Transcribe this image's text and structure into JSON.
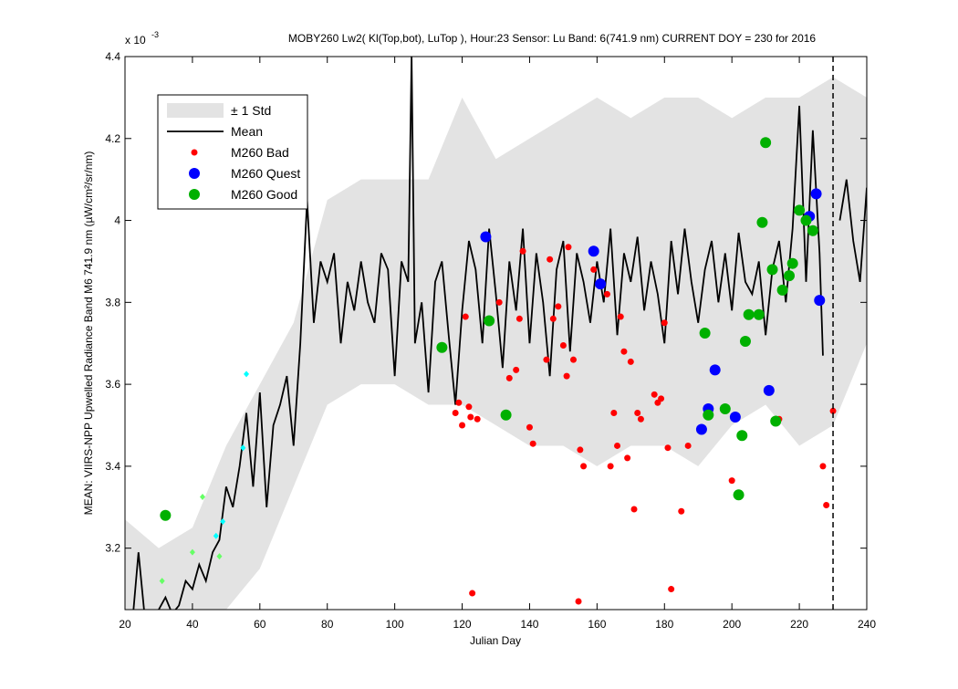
{
  "chart_data": {
    "type": "line",
    "title": "MOBY260   Lw2( Kl(Top,bot), LuTop ),   Hour:23 Sensor: Lu Band: 6(741.9 nm)   CURRENT DOY = 230 for 2016",
    "multiplier_base": "x 10",
    "multiplier_exp": "-3",
    "xlabel": "Julian Day",
    "ylabel": "MEAN: VIIRS-NPP Upwelled Radiance Band M6 741.9 nm (µW/cm²/sr/nm)",
    "xlim": [
      20,
      240
    ],
    "ylim": [
      3.05,
      4.4
    ],
    "xticks": [
      20,
      40,
      60,
      80,
      100,
      120,
      140,
      160,
      180,
      200,
      220,
      240
    ],
    "yticks": [
      3.2,
      3.4,
      3.6,
      3.8,
      4,
      4.2,
      4.4
    ],
    "vline": 230,
    "legend": "upper left",
    "series": [
      {
        "name": "± 1 Std",
        "style": "band",
        "color": "#e3e3e3",
        "x": [
          20,
          30,
          40,
          50,
          60,
          70,
          80,
          90,
          100,
          110,
          120,
          130,
          140,
          150,
          160,
          170,
          180,
          190,
          200,
          210,
          220,
          230,
          240
        ],
        "upper": [
          3.27,
          3.2,
          3.25,
          3.45,
          3.6,
          3.75,
          4.05,
          4.1,
          4.1,
          4.1,
          4.3,
          4.15,
          4.2,
          4.25,
          4.3,
          4.25,
          4.3,
          4.3,
          4.25,
          4.3,
          4.3,
          4.35,
          4.3
        ],
        "lower": [
          3.05,
          3.05,
          3.05,
          3.05,
          3.15,
          3.35,
          3.55,
          3.6,
          3.6,
          3.55,
          3.55,
          3.5,
          3.45,
          3.45,
          3.4,
          3.45,
          3.45,
          3.4,
          3.5,
          3.55,
          3.45,
          3.5,
          3.7
        ]
      },
      {
        "name": "Mean",
        "style": "line",
        "color": "#000000",
        "x": [
          22,
          24,
          26,
          28,
          30,
          32,
          34,
          36,
          38,
          40,
          42,
          44,
          46,
          48,
          50,
          52,
          54,
          56,
          58,
          60,
          62,
          64,
          66,
          68,
          70,
          72,
          74,
          76,
          78,
          80,
          82,
          84,
          86,
          88,
          90,
          92,
          94,
          96,
          98,
          100,
          102,
          104,
          105,
          106,
          108,
          110,
          112,
          114,
          116,
          118,
          120,
          122,
          124,
          126,
          128,
          130,
          132,
          134,
          136,
          138,
          140,
          142,
          144,
          146,
          148,
          150,
          152,
          154,
          156,
          158,
          160,
          162,
          164,
          166,
          168,
          170,
          172,
          174,
          176,
          178,
          180,
          182,
          184,
          186,
          188,
          190,
          192,
          194,
          196,
          198,
          200,
          202,
          204,
          206,
          208,
          210,
          212,
          214,
          216,
          218,
          220,
          222,
          224,
          226,
          227,
          230,
          232,
          234,
          236,
          238,
          240
        ],
        "values": [
          3.0,
          3.19,
          3.02,
          null,
          3.05,
          3.08,
          3.04,
          3.06,
          3.12,
          3.1,
          3.16,
          3.12,
          3.19,
          3.22,
          3.35,
          3.3,
          3.4,
          3.53,
          3.35,
          3.58,
          3.3,
          3.5,
          3.55,
          3.62,
          3.45,
          3.7,
          4.05,
          3.75,
          3.9,
          3.85,
          3.92,
          3.7,
          3.85,
          3.78,
          3.9,
          3.8,
          3.75,
          3.92,
          3.88,
          3.62,
          3.9,
          3.85,
          4.4,
          3.7,
          3.8,
          3.58,
          3.85,
          3.9,
          3.72,
          3.55,
          3.78,
          3.95,
          3.88,
          3.7,
          3.98,
          3.82,
          3.64,
          3.9,
          3.78,
          3.98,
          3.7,
          3.92,
          3.8,
          3.62,
          3.88,
          3.95,
          3.68,
          3.92,
          3.85,
          3.75,
          3.9,
          3.8,
          3.98,
          3.72,
          3.92,
          3.85,
          3.96,
          3.78,
          3.9,
          3.82,
          3.7,
          3.95,
          3.82,
          3.98,
          3.85,
          3.75,
          3.88,
          3.95,
          3.8,
          3.92,
          3.78,
          3.97,
          3.85,
          3.82,
          3.9,
          3.72,
          3.88,
          3.95,
          3.8,
          3.98,
          4.28,
          3.85,
          4.22,
          3.92,
          3.67,
          null,
          4.0,
          4.1,
          3.95,
          3.85,
          4.08
        ]
      },
      {
        "name": "M260 Bad",
        "style": "marker",
        "marker": "dot",
        "color": "#ff0000",
        "x": [
          118,
          119,
          120,
          121,
          122,
          122.5,
          123,
          124.5,
          131,
          134,
          136,
          137,
          138,
          140,
          141,
          145,
          146,
          147,
          148.5,
          150,
          151,
          151.5,
          153,
          154.5,
          155,
          156,
          159,
          163,
          164,
          165,
          166,
          167,
          168,
          169,
          170,
          171,
          172,
          173,
          177,
          178,
          179,
          180,
          181,
          182,
          185,
          187,
          200,
          214,
          227,
          228,
          230
        ],
        "values": [
          3.53,
          3.555,
          3.5,
          3.765,
          3.545,
          3.52,
          3.09,
          3.515,
          3.8,
          3.615,
          3.635,
          3.76,
          3.925,
          3.495,
          3.455,
          3.66,
          3.905,
          3.76,
          3.79,
          3.695,
          3.62,
          3.935,
          3.66,
          3.07,
          3.44,
          3.4,
          3.88,
          3.82,
          3.4,
          3.53,
          3.45,
          3.765,
          3.68,
          3.42,
          3.655,
          3.295,
          3.53,
          3.515,
          3.575,
          3.555,
          3.565,
          3.75,
          3.445,
          3.1,
          3.29,
          3.45,
          3.365,
          3.515,
          3.4,
          3.305,
          3.535
        ]
      },
      {
        "name": "M260 Quest",
        "style": "marker",
        "marker": "circle",
        "color": "#0000ff",
        "x": [
          127,
          159,
          161,
          191,
          193,
          195,
          201,
          211,
          223,
          225,
          226
        ],
        "values": [
          3.96,
          3.925,
          3.845,
          3.49,
          3.54,
          3.635,
          3.52,
          3.585,
          4.01,
          4.065,
          3.805
        ]
      },
      {
        "name": "M260 Good",
        "style": "marker",
        "marker": "circle",
        "color": "#00b000",
        "x": [
          32,
          114,
          128,
          133,
          192,
          193,
          198,
          202,
          203,
          204,
          205,
          208,
          209,
          210,
          212,
          213,
          215,
          217,
          218,
          220,
          222,
          224
        ],
        "values": [
          3.28,
          3.69,
          3.755,
          3.525,
          3.725,
          3.525,
          3.54,
          3.33,
          3.475,
          3.705,
          3.77,
          3.77,
          3.995,
          4.19,
          3.88,
          3.51,
          3.83,
          3.865,
          3.895,
          4.025,
          4.0,
          3.975
        ]
      },
      {
        "style": "marker",
        "marker": "diamond",
        "color": "#00ffff",
        "x": [
          47,
          49,
          55,
          56
        ],
        "values": [
          3.23,
          3.265,
          3.445,
          3.625
        ]
      },
      {
        "style": "marker",
        "marker": "diamond",
        "color": "#66ff66",
        "x": [
          31,
          40,
          43,
          48
        ],
        "values": [
          3.12,
          3.19,
          3.325,
          3.18
        ]
      }
    ]
  }
}
